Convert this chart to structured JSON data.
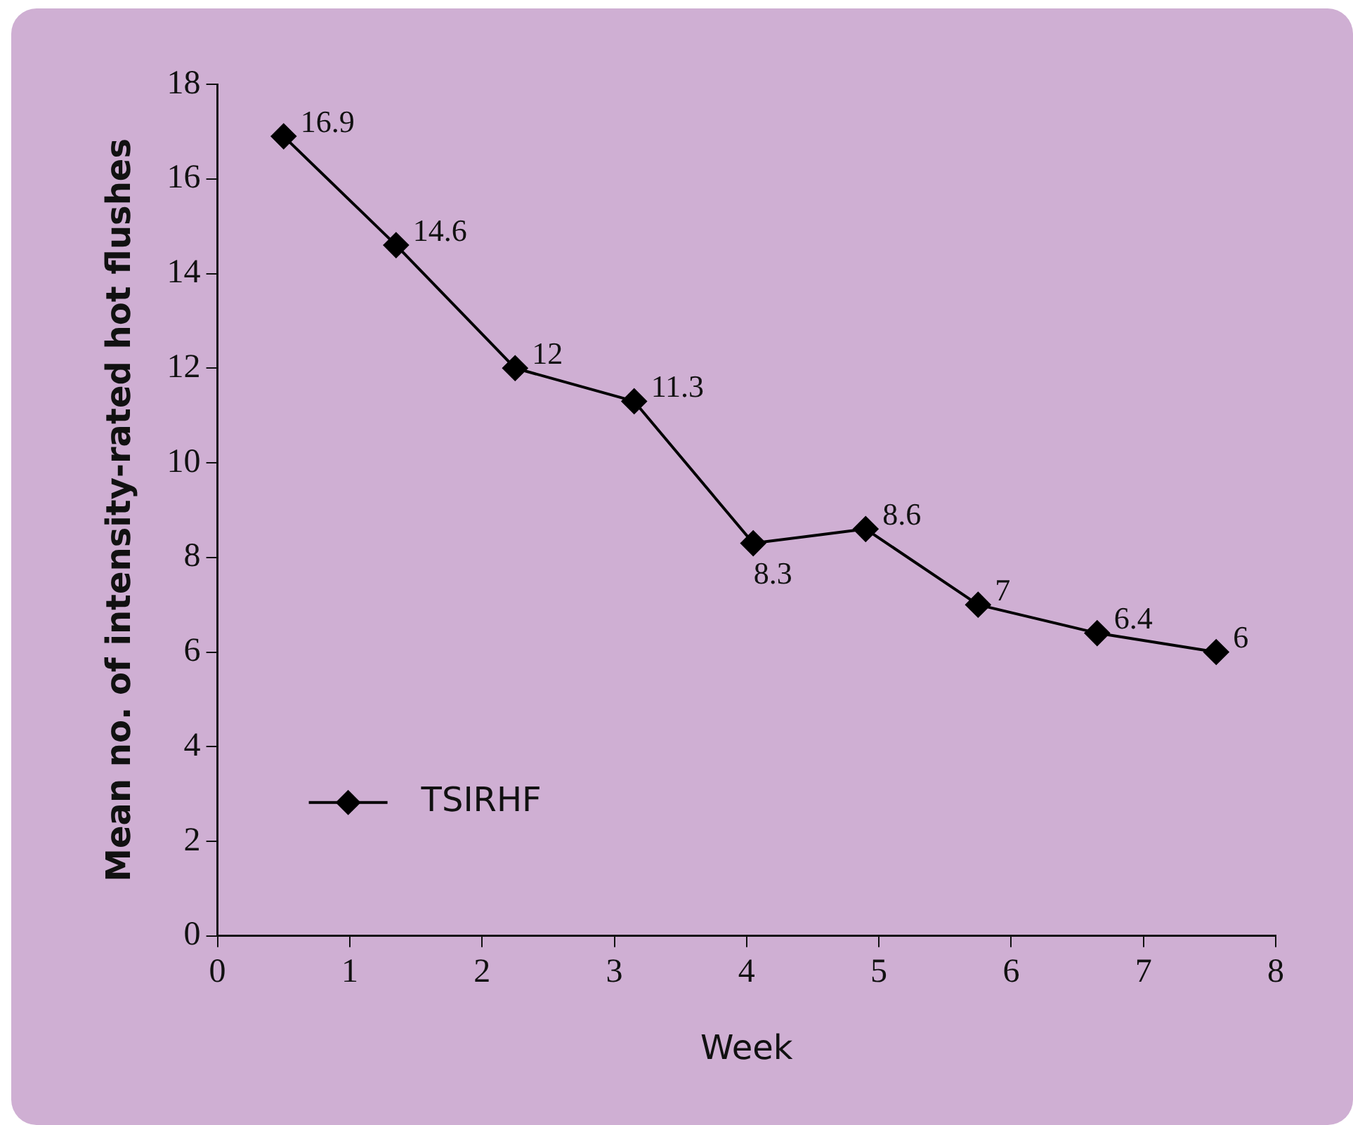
{
  "chart_data": {
    "type": "line",
    "xlabel": "Week",
    "ylabel": "Mean no. of intensity-rated hot flushes",
    "x": [
      0.5,
      1.35,
      2.25,
      3.15,
      4.05,
      4.9,
      5.75,
      6.65,
      7.55
    ],
    "series": [
      {
        "name": "TSIRHF",
        "color": "#000000",
        "values": [
          16.9,
          14.6,
          12,
          11.3,
          8.3,
          8.6,
          7,
          6.4,
          6
        ]
      }
    ],
    "xlim": [
      0,
      8
    ],
    "xticks": [
      0,
      1,
      2,
      3,
      4,
      5,
      6,
      7,
      8
    ],
    "ylim": [
      0,
      18
    ],
    "yticks": [
      0,
      2,
      4,
      6,
      8,
      10,
      12,
      14,
      16,
      18
    ],
    "grid": false,
    "legend": "bottom left",
    "marker": "diamond",
    "line_style": "solid",
    "data_labels": true
  }
}
